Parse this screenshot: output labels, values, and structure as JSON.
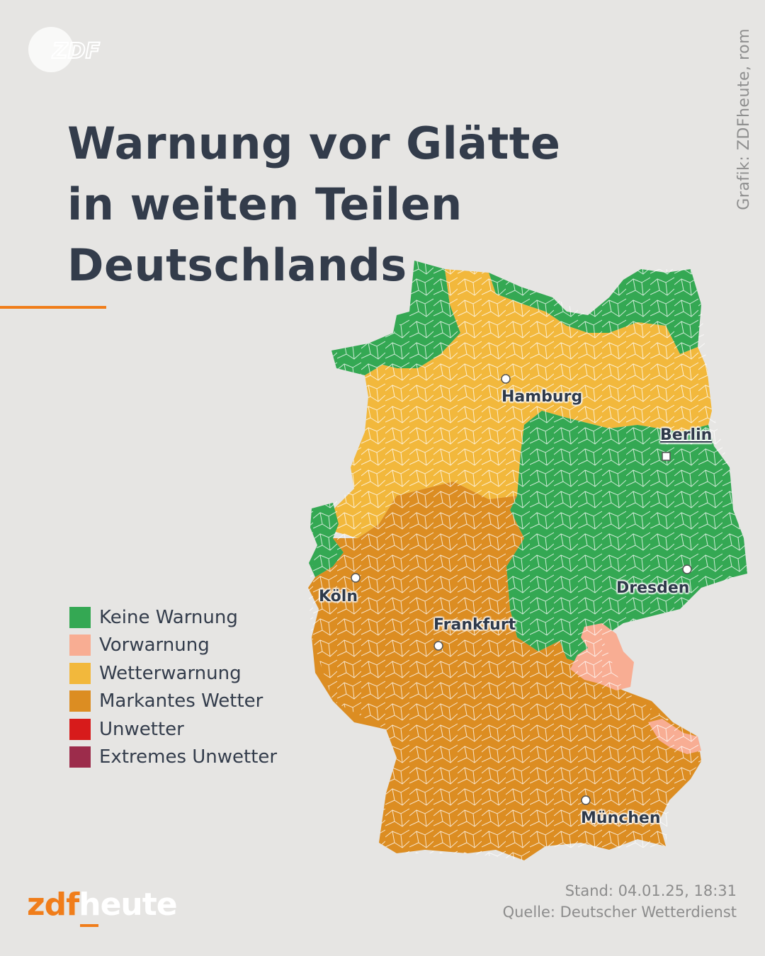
{
  "title_lines": [
    "Warnung vor Glätte",
    "in weiten Teilen",
    "Deutschlands"
  ],
  "credit": "Grafik: ZDFheute, rom",
  "logo_text": "ZDF",
  "legend": [
    {
      "label": "Keine Warnung",
      "color": "#34a853"
    },
    {
      "label": "Vorwarnung",
      "color": "#f8ad93"
    },
    {
      "label": "Wetterwarnung",
      "color": "#f2b83c"
    },
    {
      "label": "Markantes Wetter",
      "color": "#dc8d22"
    },
    {
      "label": "Unwetter",
      "color": "#d71b1b"
    },
    {
      "label": "Extremes Unwetter",
      "color": "#9c2c4b"
    }
  ],
  "cities": {
    "hamburg": "Hamburg",
    "berlin": "Berlin",
    "koeln": "Köln",
    "dresden": "Dresden",
    "frankfurt": "Frankfurt",
    "muenchen": "München"
  },
  "footer": {
    "stand": "Stand: 04.01.25, 18:31",
    "quelle": "Quelle: Deutscher Wetterdienst"
  },
  "brand": {
    "part1": "zdf",
    "part2": "heute"
  }
}
